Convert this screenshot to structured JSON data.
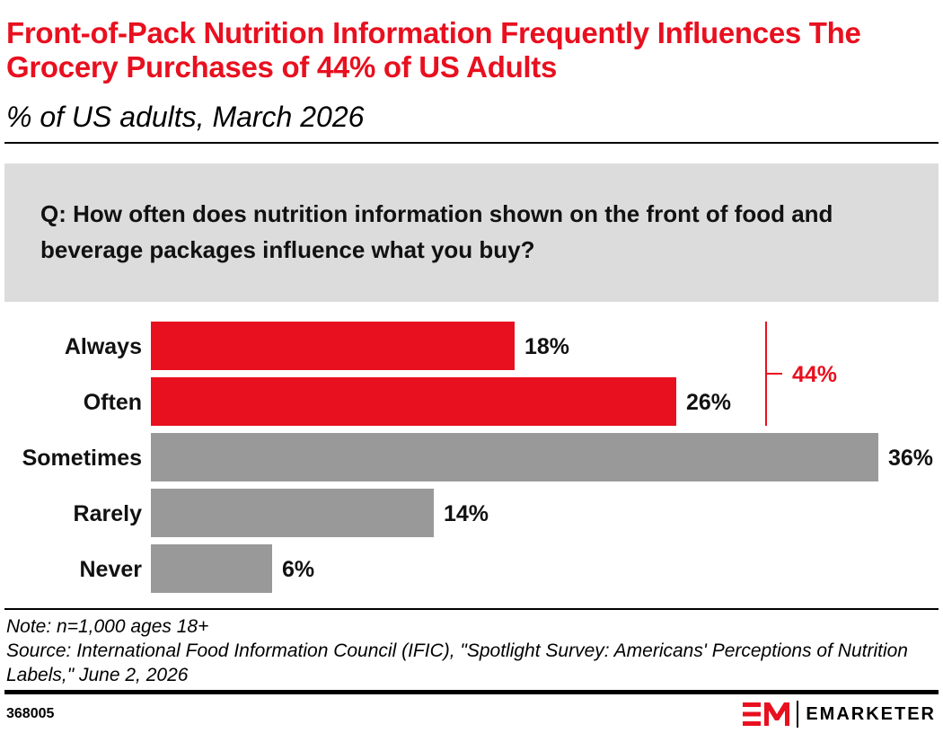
{
  "header": {
    "title": "Front-of-Pack Nutrition Information Frequently Influences The Grocery Purchases of 44% of US Adults",
    "subtitle": "% of US adults, March 2026"
  },
  "question": "Q: How often does nutrition information shown on the front of food and beverage packages influence what you buy?",
  "chart_data": {
    "type": "bar",
    "orientation": "horizontal",
    "categories": [
      "Always",
      "Often",
      "Sometimes",
      "Rarely",
      "Never"
    ],
    "values": [
      18,
      26,
      36,
      14,
      6
    ],
    "value_labels": [
      "18%",
      "26%",
      "36%",
      "14%",
      "6%"
    ],
    "colors": [
      "#e8101f",
      "#e8101f",
      "#999999",
      "#999999",
      "#999999"
    ],
    "highlight_color": "#e8101f",
    "bracket": {
      "categories": [
        "Always",
        "Often"
      ],
      "label": "44%"
    },
    "xlim": [
      0,
      36
    ],
    "grid": false,
    "legend": "none"
  },
  "footer": {
    "note": "Note: n=1,000 ages 18+",
    "source": "Source: International Food Information Council (IFIC), \"Spotlight Survey: Americans' Perceptions of Nutrition Labels,\" June 2, 2026",
    "chart_id": "368005",
    "brand": "EMARKETER"
  }
}
